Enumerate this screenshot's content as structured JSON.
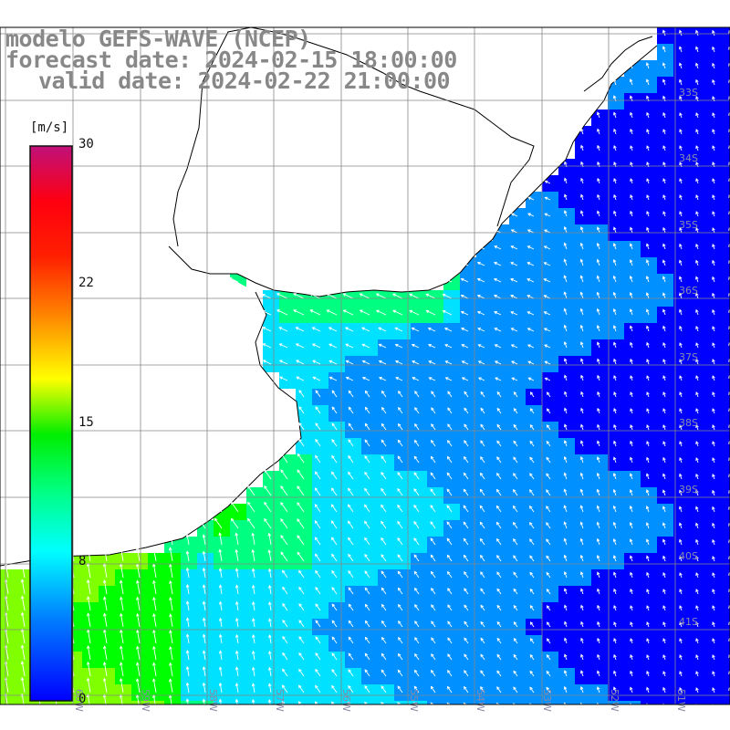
{
  "title": {
    "line1": "modelo GEFS-WAVE (NCEP)",
    "line2": "forecast date: 2024-02-15 18:00:00",
    "line3": "valid date: 2024-02-22 21:00:00"
  },
  "colorbar": {
    "unit": "[m/s]",
    "ticks": [
      "30",
      "22",
      "15",
      "8",
      "0"
    ],
    "tick_values": [
      30,
      22,
      15,
      8,
      0
    ],
    "range": [
      0,
      30
    ],
    "colors": [
      "#0000ff",
      "#0090ff",
      "#00e0ff",
      "#00ff80",
      "#00ff00",
      "#80ff00",
      "#ffff00",
      "#ff9000",
      "#ff3000",
      "#ff0000",
      "#e00050",
      "#c0107a"
    ]
  },
  "map": {
    "lat_labels": [
      "33S",
      "34S",
      "35S",
      "36S",
      "37S",
      "38S",
      "39S",
      "40S",
      "41S"
    ],
    "lon_labels": [
      "60W",
      "59W",
      "58W",
      "57W",
      "56W",
      "55W",
      "54W",
      "53W",
      "52W",
      "51W"
    ],
    "land_color": "#ffffff",
    "grid_color": "#888888",
    "field": "wind speed (m/s) with direction arrows"
  }
}
